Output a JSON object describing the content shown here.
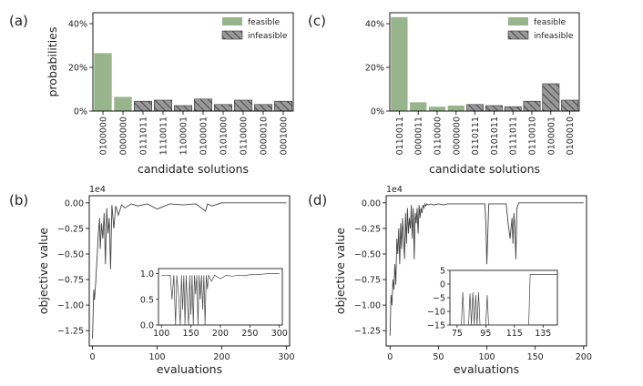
{
  "panel_labels": [
    "(a)",
    "(b)",
    "(c)",
    "(d)"
  ],
  "colors": {
    "feasible": "#97b48c",
    "infeasible": "#999999",
    "line": "#444444",
    "edge": "#333333"
  },
  "chart_data": [
    {
      "id": "a",
      "type": "bar",
      "ylabel": "probabilities",
      "xlabel": "candidate solutions",
      "ylim": [
        0,
        45
      ],
      "yticks": [
        0,
        20,
        40
      ],
      "ytick_labels": [
        "0%",
        "20%",
        "40%"
      ],
      "legend": {
        "position": "top-right",
        "entries": [
          "feasible",
          "infeasible"
        ]
      },
      "categories": [
        "0100000",
        "0000000",
        "0111011",
        "1110011",
        "1100001",
        "0100001",
        "0101000",
        "0110000",
        "0000010",
        "0001000"
      ],
      "values": [
        26.5,
        6.5,
        4.5,
        5.0,
        2.5,
        5.5,
        3.0,
        5.0,
        3.0,
        4.5
      ],
      "feasible": [
        true,
        true,
        false,
        false,
        false,
        false,
        false,
        false,
        false,
        false
      ]
    },
    {
      "id": "c",
      "type": "bar",
      "ylabel": "",
      "xlabel": "candidate solutions",
      "ylim": [
        0,
        45
      ],
      "yticks": [
        0,
        20,
        40
      ],
      "ytick_labels": [
        "0%",
        "20%",
        "40%"
      ],
      "legend": {
        "position": "top-right",
        "entries": [
          "feasible",
          "infeasible"
        ]
      },
      "categories": [
        "0110011",
        "0000011",
        "0110000",
        "0000000",
        "0110111",
        "0101011",
        "0111011",
        "0110010",
        "0100001",
        "0100010"
      ],
      "values": [
        43.0,
        4.0,
        2.0,
        2.5,
        3.0,
        2.5,
        2.0,
        4.5,
        12.5,
        5.0
      ],
      "feasible": [
        true,
        true,
        true,
        true,
        false,
        false,
        false,
        false,
        false,
        false
      ]
    },
    {
      "id": "b",
      "type": "line",
      "ylabel": "objective value",
      "xlabel": "evaluations",
      "offset_label": "1e4",
      "xlim": [
        -5,
        305
      ],
      "ylim": [
        -1.4,
        0.07
      ],
      "xticks": [
        0,
        100,
        200,
        300
      ],
      "yticks": [
        0.0,
        -0.25,
        -0.5,
        -0.75,
        -1.0,
        -1.25
      ],
      "ytick_labels": [
        "0.00",
        "−0.25",
        "−0.50",
        "−0.75",
        "−1.00",
        "−1.25"
      ],
      "x": [
        0,
        2,
        3,
        5,
        7,
        9,
        11,
        12,
        14,
        16,
        18,
        20,
        22,
        24,
        26,
        28,
        30,
        33,
        36,
        40,
        45,
        50,
        60,
        70,
        85,
        100,
        120,
        140,
        160,
        175,
        178,
        185,
        200,
        300
      ],
      "y": [
        -1.33,
        -0.85,
        -0.95,
        -0.78,
        -0.55,
        -0.3,
        -0.15,
        -0.45,
        -0.2,
        -0.35,
        -0.1,
        -0.6,
        -0.05,
        -0.3,
        -0.15,
        -0.65,
        -0.02,
        -0.25,
        -0.03,
        -0.12,
        -0.02,
        -0.05,
        -0.01,
        -0.03,
        -0.01,
        -0.06,
        -0.01,
        -0.02,
        -0.01,
        -0.08,
        -0.01,
        -0.03,
        0.0,
        0.0
      ],
      "inset": {
        "xlim": [
          95,
          305
        ],
        "ylim": [
          0.0,
          1.1
        ],
        "xticks": [
          100,
          150,
          200,
          250,
          300
        ],
        "yticks": [
          0.0,
          0.5,
          1.0
        ],
        "ytick_labels": [
          "0.0",
          "0.5",
          "1.0"
        ],
        "x": [
          100,
          115,
          118,
          121,
          124,
          126,
          129,
          132,
          134,
          136,
          138,
          140,
          142,
          144,
          146,
          148,
          150,
          152,
          154,
          156,
          158,
          160,
          162,
          164,
          166,
          168,
          170,
          172,
          174,
          176,
          178,
          180,
          185,
          190,
          200,
          210,
          220,
          230,
          240,
          250,
          260,
          270,
          280,
          300
        ],
        "y": [
          0.97,
          0.97,
          0.5,
          0.97,
          0.0,
          0.97,
          0.6,
          0.0,
          0.97,
          0.3,
          0.97,
          0.0,
          0.97,
          0.4,
          0.0,
          0.97,
          0.2,
          0.97,
          0.0,
          0.97,
          0.6,
          0.97,
          0.0,
          0.97,
          0.5,
          0.97,
          0.3,
          0.97,
          0.0,
          0.97,
          0.7,
          0.97,
          0.85,
          0.97,
          0.9,
          0.97,
          0.95,
          0.97,
          0.96,
          0.98,
          0.98,
          0.99,
          1.0,
          1.0
        ]
      }
    },
    {
      "id": "d",
      "type": "line",
      "ylabel": "objective value",
      "xlabel": "evaluations",
      "offset_label": "1e4",
      "xlim": [
        -4,
        203
      ],
      "ylim": [
        -1.4,
        0.07
      ],
      "xticks": [
        0,
        50,
        100,
        150,
        200
      ],
      "yticks": [
        0.0,
        -0.25,
        -0.5,
        -0.75,
        -1.0,
        -1.25
      ],
      "ytick_labels": [
        "0.00",
        "−0.25",
        "−0.50",
        "−0.75",
        "−1.00",
        "−1.25"
      ],
      "x": [
        0,
        1,
        2,
        3,
        4,
        5,
        6,
        7,
        8,
        9,
        10,
        11,
        12,
        13,
        14,
        15,
        16,
        17,
        18,
        19,
        20,
        21,
        22,
        23,
        24,
        25,
        26,
        27,
        28,
        29,
        30,
        31,
        32,
        33,
        34,
        35,
        36,
        37,
        38,
        40,
        42,
        45,
        50,
        55,
        60,
        65,
        70,
        75,
        80,
        85,
        90,
        95,
        98,
        99,
        100,
        101,
        102,
        110,
        120,
        122,
        124,
        126,
        127,
        128,
        129,
        130,
        131,
        133,
        140,
        150,
        200
      ],
      "y": [
        -1.3,
        -0.9,
        -1.0,
        -0.75,
        -0.85,
        -0.6,
        -0.8,
        -0.35,
        -0.5,
        -0.25,
        -0.6,
        -0.2,
        -0.45,
        -0.15,
        -0.35,
        -0.55,
        -0.1,
        -0.4,
        -0.05,
        -0.3,
        -0.15,
        -0.25,
        -0.02,
        -0.35,
        -0.05,
        -0.55,
        -0.1,
        -0.2,
        -0.05,
        -0.3,
        -0.02,
        -0.15,
        -0.05,
        -0.1,
        -0.02,
        -0.05,
        -0.01,
        -0.03,
        -0.01,
        -0.02,
        -0.01,
        -0.02,
        -0.01,
        -0.02,
        -0.01,
        -0.01,
        -0.01,
        -0.01,
        -0.01,
        -0.01,
        -0.01,
        -0.01,
        -0.01,
        -0.2,
        -0.6,
        -0.3,
        -0.01,
        -0.01,
        -0.01,
        -0.2,
        -0.35,
        -0.15,
        -0.4,
        -0.1,
        -0.25,
        -0.55,
        -0.05,
        0.0,
        0.0,
        0.0,
        0.0
      ],
      "inset": {
        "xlim": [
          70,
          145
        ],
        "ylim": [
          -15,
          5
        ],
        "xticks": [
          75,
          95,
          115,
          135
        ],
        "yticks": [
          5,
          0,
          -5,
          -10,
          -15
        ],
        "ytick_labels": [
          "5",
          "0",
          "−5",
          "−10",
          "−15"
        ],
        "x": [
          70,
          78,
          79,
          80,
          83,
          84,
          85,
          86,
          87,
          88,
          89,
          90,
          91,
          92,
          95,
          96,
          97,
          125,
          126,
          145
        ],
        "y": [
          -15,
          -15,
          -3,
          -15,
          -15,
          -3.5,
          -15,
          -3,
          -15,
          -4,
          -15,
          -3,
          -15,
          -15,
          -15,
          -4,
          -15,
          -15,
          3.5,
          3.5
        ],
        "x_bounded": true
      }
    }
  ]
}
